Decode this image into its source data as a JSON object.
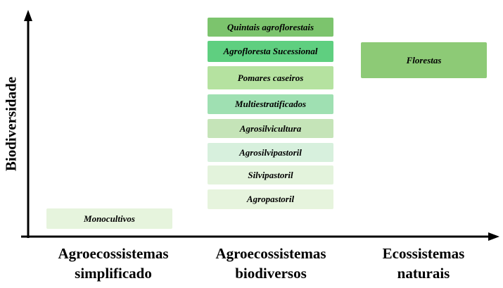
{
  "y_axis_label": "Biodiversidade",
  "categories": [
    {
      "line1": "Agroecossistemas",
      "line2": "simplificado"
    },
    {
      "line1": "Agroecossistemas",
      "line2": "biodiversos"
    },
    {
      "line1": "Ecossistemas",
      "line2": "naturais"
    }
  ],
  "boxes": {
    "monocultivos": {
      "label": "Monocultivos",
      "color": "#e6f4dd"
    },
    "quintais": {
      "label": "Quintais agroflorestais",
      "color": "#7cc46d"
    },
    "agrofloresta": {
      "label": "Agrofloresta Sucessional",
      "color": "#5fcf80"
    },
    "pomares": {
      "label": "Pomares caseiros",
      "color": "#b5e2a0"
    },
    "multiestratificados": {
      "label": "Multiestratificados",
      "color": "#9fe0b2"
    },
    "agrosilvicultura": {
      "label": "Agrosilvicultura",
      "color": "#c5e4b8"
    },
    "agrosilvipastoril": {
      "label": "Agrosilvipastoril",
      "color": "#d7f0dd"
    },
    "silvipastoril": {
      "label": "Silvipastoril",
      "color": "#e3f3dc"
    },
    "agropastoril": {
      "label": "Agropastoril",
      "color": "#e6f4dd"
    },
    "florestas": {
      "label": "Florestas",
      "color": "#8dca76"
    }
  }
}
